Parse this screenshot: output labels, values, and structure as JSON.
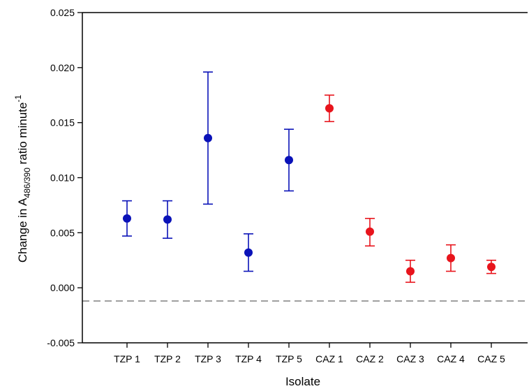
{
  "chart_data": {
    "type": "scatter",
    "xlabel": "Isolate",
    "ylabel": {
      "prefix": "Change in A",
      "subscript": "486/390",
      "middle": " ratio minute",
      "superscript": "-1"
    },
    "ylim": [
      -0.005,
      0.025
    ],
    "y_ticks": [
      "-0.005",
      "0.000",
      "0.005",
      "0.010",
      "0.015",
      "0.020",
      "0.025"
    ],
    "y_tick_values": [
      -0.005,
      0.0,
      0.005,
      0.01,
      0.015,
      0.02,
      0.025
    ],
    "categories": [
      "TZP 1",
      "TZP 2",
      "TZP 3",
      "TZP 4",
      "TZP 5",
      "CAZ 1",
      "CAZ 2",
      "CAZ 3",
      "CAZ 4",
      "CAZ 5"
    ],
    "grid": false,
    "reference_line": {
      "y": -0.0012,
      "style": "dashed",
      "color": "#555555"
    },
    "series": [
      {
        "color": "#0a12b8",
        "points": [
          {
            "category": "TZP 1",
            "value": 0.0063,
            "low": 0.0047,
            "high": 0.0079
          },
          {
            "category": "TZP 2",
            "value": 0.0062,
            "low": 0.0045,
            "high": 0.0079
          },
          {
            "category": "TZP 3",
            "value": 0.0136,
            "low": 0.0076,
            "high": 0.0196
          },
          {
            "category": "TZP 4",
            "value": 0.0032,
            "low": 0.0015,
            "high": 0.0049
          },
          {
            "category": "TZP 5",
            "value": 0.0116,
            "low": 0.0088,
            "high": 0.0144
          }
        ]
      },
      {
        "color": "#e8141c",
        "points": [
          {
            "category": "CAZ 1",
            "value": 0.0163,
            "low": 0.0151,
            "high": 0.0175
          },
          {
            "category": "CAZ 2",
            "value": 0.0051,
            "low": 0.0038,
            "high": 0.0063
          },
          {
            "category": "CAZ 3",
            "value": 0.0015,
            "low": 0.0005,
            "high": 0.0025
          },
          {
            "category": "CAZ 4",
            "value": 0.0027,
            "low": 0.0015,
            "high": 0.0039
          },
          {
            "category": "CAZ 5",
            "value": 0.0019,
            "low": 0.0013,
            "high": 0.0025
          }
        ]
      }
    ]
  }
}
